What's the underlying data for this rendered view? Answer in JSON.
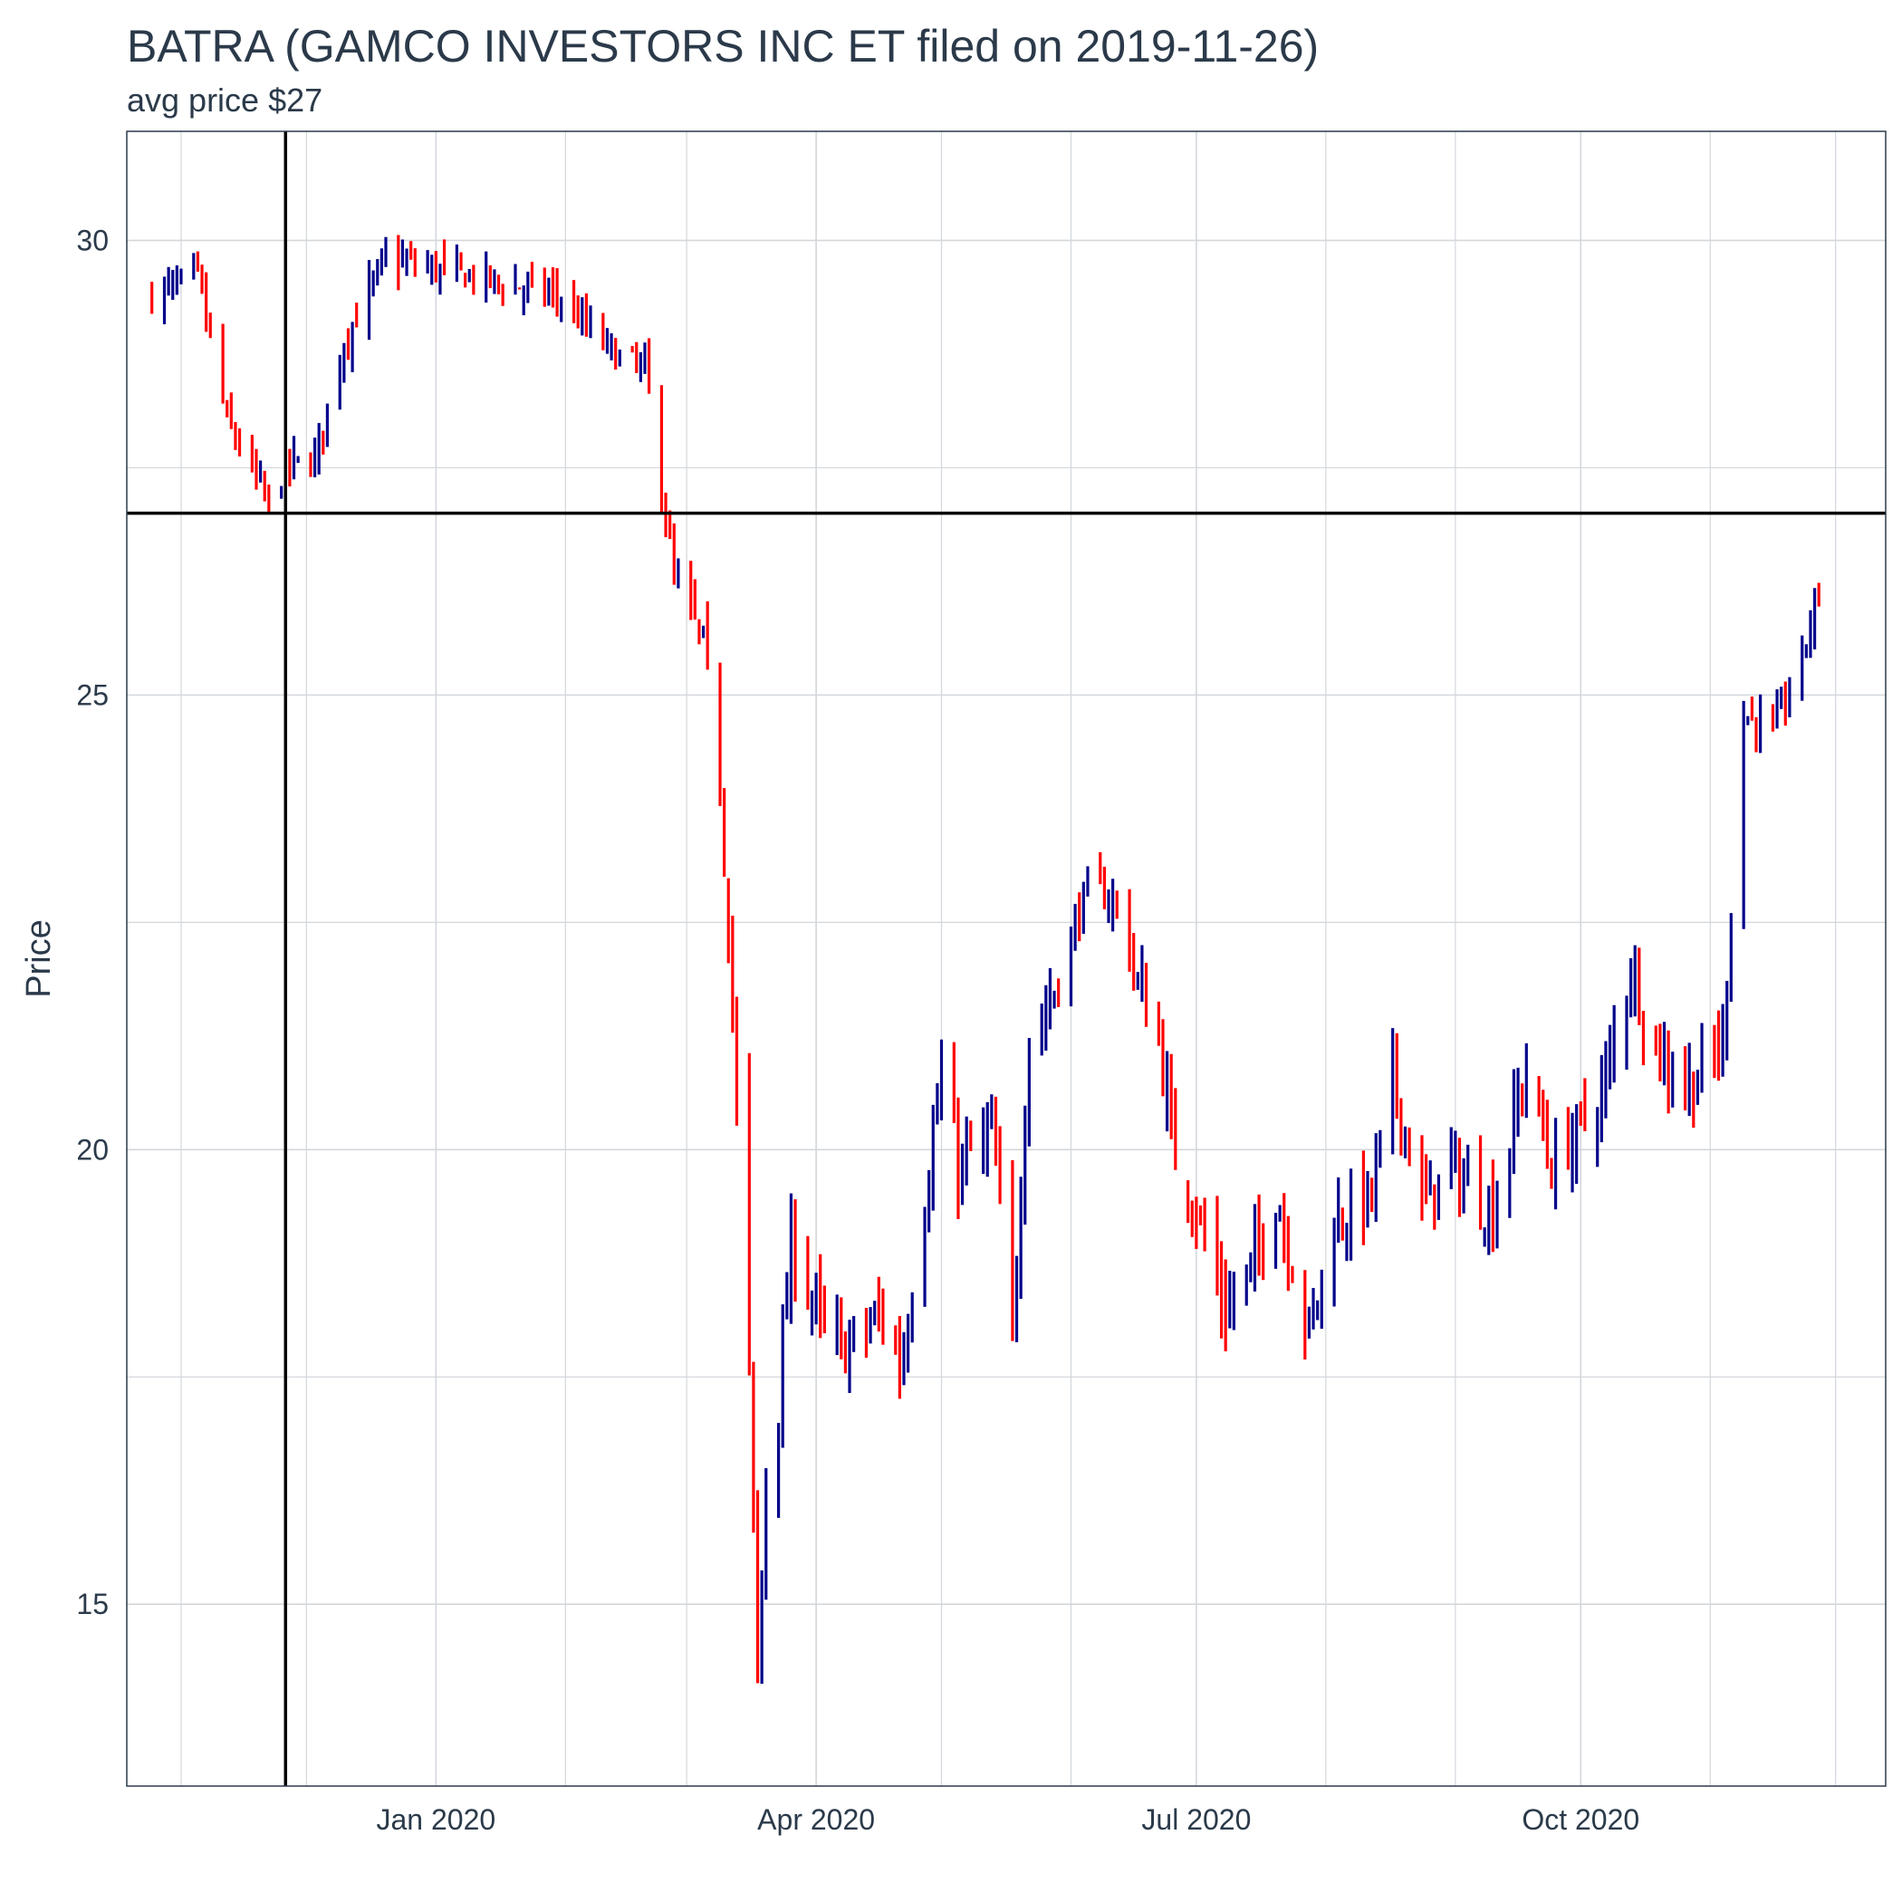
{
  "title": "BATRA (GAMCO INVESTORS  INC ET filed on 2019-11-26)",
  "subtitle": "avg price $27",
  "colors": {
    "up": "#00008B",
    "down": "#FF0000",
    "grid": "#D3D7DC",
    "border": "#2B3A4A",
    "text": "#2B3A4A",
    "ref": "#000000"
  },
  "chart_data": {
    "type": "ohlc",
    "title": "BATRA (GAMCO INVESTORS  INC ET filed on 2019-11-26)",
    "subtitle": "avg price $27",
    "xlabel": "",
    "ylabel": "Price",
    "x_range": [
      "2019-10-19",
      "2020-12-13"
    ],
    "ylim": [
      13.0,
      31.2
    ],
    "yticks": [
      15,
      20,
      25,
      30
    ],
    "xticks": [
      {
        "date": "2020-01-01",
        "label": "Jan 2020"
      },
      {
        "date": "2020-04-01",
        "label": "Apr 2020"
      },
      {
        "date": "2020-07-01",
        "label": "Jul 2020"
      },
      {
        "date": "2020-10-01",
        "label": "Oct 2020"
      }
    ],
    "grid": true,
    "reference_lines": {
      "vertical_date": "2019-11-26",
      "horizontal_price": 27.0
    },
    "anchors": [
      [
        "2019-10-25",
        29.4
      ],
      [
        "2019-11-05",
        29.6
      ],
      [
        "2019-11-12",
        28.0
      ],
      [
        "2019-11-22",
        27.1
      ],
      [
        "2019-11-26",
        27.5
      ],
      [
        "2019-12-03",
        27.6
      ],
      [
        "2019-12-10",
        28.9
      ],
      [
        "2019-12-20",
        29.8
      ],
      [
        "2020-01-10",
        29.6
      ],
      [
        "2020-01-30",
        29.4
      ],
      [
        "2020-02-05",
        29.1
      ],
      [
        "2020-02-14",
        28.7
      ],
      [
        "2020-02-20",
        28.6
      ],
      [
        "2020-02-27",
        26.3
      ],
      [
        "2020-03-05",
        25.6
      ],
      [
        "2020-03-09",
        24.0
      ],
      [
        "2020-03-12",
        21.5
      ],
      [
        "2020-03-16",
        17.6
      ],
      [
        "2020-03-18",
        14.2
      ],
      [
        "2020-03-20",
        16.5
      ],
      [
        "2020-03-23",
        17.2
      ],
      [
        "2020-03-26",
        19.0
      ],
      [
        "2020-04-03",
        18.0
      ],
      [
        "2020-04-08",
        17.8
      ],
      [
        "2020-04-17",
        18.2
      ],
      [
        "2020-04-21",
        17.6
      ],
      [
        "2020-04-24",
        18.5
      ],
      [
        "2020-05-01",
        20.8
      ],
      [
        "2020-05-05",
        19.8
      ],
      [
        "2020-05-13",
        20.2
      ],
      [
        "2020-05-18",
        18.0
      ],
      [
        "2020-05-22",
        21.3
      ],
      [
        "2020-05-26",
        21.5
      ],
      [
        "2020-06-05",
        22.9
      ],
      [
        "2020-06-12",
        22.7
      ],
      [
        "2020-06-17",
        21.8
      ],
      [
        "2020-06-22",
        21.2
      ],
      [
        "2020-06-26",
        19.9
      ],
      [
        "2020-06-30",
        19.5
      ],
      [
        "2020-07-08",
        18.2
      ],
      [
        "2020-07-15",
        18.8
      ],
      [
        "2020-07-20",
        19.5
      ],
      [
        "2020-07-28",
        18.0
      ],
      [
        "2020-08-03",
        19.2
      ],
      [
        "2020-08-12",
        19.5
      ],
      [
        "2020-08-17",
        20.8
      ],
      [
        "2020-08-24",
        19.4
      ],
      [
        "2020-08-31",
        19.8
      ],
      [
        "2020-09-10",
        19.3
      ],
      [
        "2020-09-18",
        20.9
      ],
      [
        "2020-09-24",
        19.8
      ],
      [
        "2020-10-06",
        20.6
      ],
      [
        "2020-10-13",
        22.0
      ],
      [
        "2020-10-20",
        21.0
      ],
      [
        "2020-10-28",
        20.7
      ],
      [
        "2020-11-04",
        21.2
      ],
      [
        "2020-11-09",
        24.8
      ],
      [
        "2020-11-16",
        24.6
      ],
      [
        "2020-11-23",
        25.4
      ],
      [
        "2020-11-27",
        26.2
      ]
    ]
  }
}
